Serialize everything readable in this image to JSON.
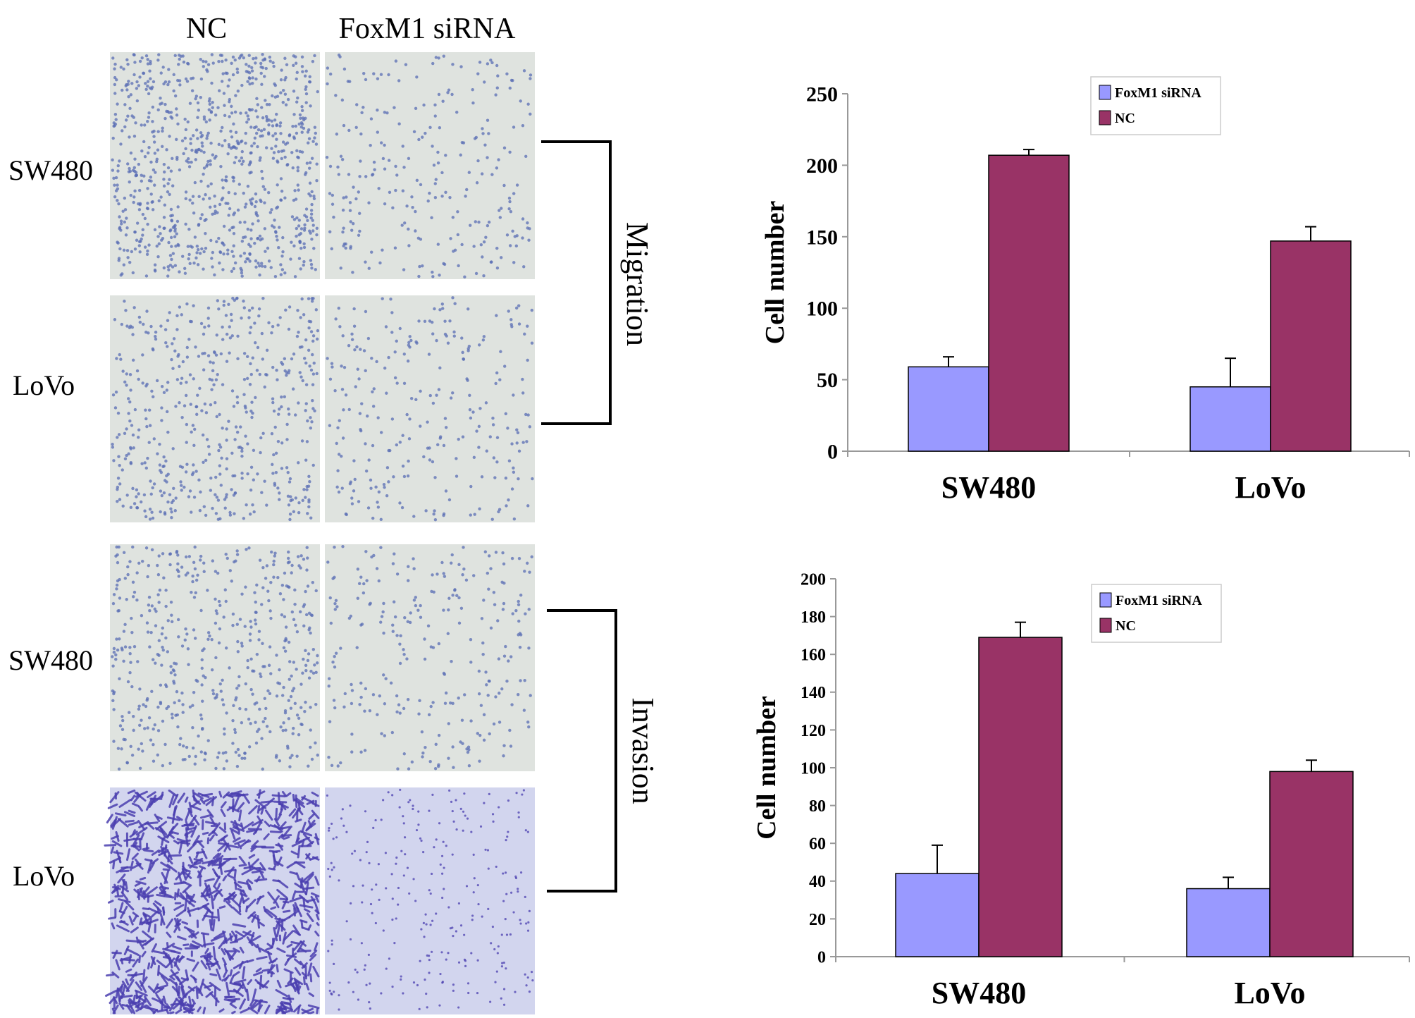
{
  "figure": {
    "column_headers": [
      "NC",
      "FoxM1 siRNA"
    ],
    "row_labels": [
      "SW480",
      "LoVo",
      "SW480",
      "LoVo"
    ],
    "bracket_labels": [
      "Migration",
      "Invasion"
    ],
    "micrographs": [
      {
        "row": "SW480",
        "column": "NC",
        "assay": "Migration",
        "stain": "light-blue",
        "density": "dense"
      },
      {
        "row": "SW480",
        "column": "FoxM1 siRNA",
        "assay": "Migration",
        "stain": "light-blue",
        "density": "sparse"
      },
      {
        "row": "LoVo",
        "column": "NC",
        "assay": "Migration",
        "stain": "light-blue",
        "density": "medium"
      },
      {
        "row": "LoVo",
        "column": "FoxM1 siRNA",
        "assay": "Migration",
        "stain": "light-blue",
        "density": "sparse"
      },
      {
        "row": "SW480",
        "column": "NC",
        "assay": "Invasion",
        "stain": "light-blue",
        "density": "medium"
      },
      {
        "row": "SW480",
        "column": "FoxM1 siRNA",
        "assay": "Invasion",
        "stain": "light-blue",
        "density": "sparse"
      },
      {
        "row": "LoVo",
        "column": "NC",
        "assay": "Invasion",
        "stain": "violet",
        "density": "dense"
      },
      {
        "row": "LoVo",
        "column": "FoxM1 siRNA",
        "assay": "Invasion",
        "stain": "violet",
        "density": "sparse"
      }
    ]
  },
  "colors": {
    "foxm1": "#9999ff",
    "nc": "#993366",
    "micro_bg_light": "#dfe3df",
    "micro_bg_violet": "#d2d5ee",
    "cell_light": "#5a6eb4",
    "cell_violet": "#4b3fb0"
  },
  "chart_data": [
    {
      "type": "bar",
      "title": "",
      "xlabel": "",
      "ylabel": "Cell number",
      "categories": [
        "SW480",
        "LoVo"
      ],
      "ylim": [
        0,
        250
      ],
      "yticks": [
        0,
        50,
        100,
        150,
        200,
        250
      ],
      "legend_position": "top-center",
      "series": [
        {
          "name": "FoxM1 siRNA",
          "color": "#9999ff",
          "values": [
            59,
            45
          ],
          "errors": [
            7,
            20
          ]
        },
        {
          "name": "NC",
          "color": "#993366",
          "values": [
            207,
            147
          ],
          "errors": [
            4,
            10
          ]
        }
      ]
    },
    {
      "type": "bar",
      "title": "",
      "xlabel": "",
      "ylabel": "Cell number",
      "categories": [
        "SW480",
        "LoVo"
      ],
      "ylim": [
        0,
        200
      ],
      "yticks": [
        0,
        20,
        40,
        60,
        80,
        100,
        120,
        140,
        160,
        180,
        200
      ],
      "legend_position": "top-center",
      "series": [
        {
          "name": "FoxM1 siRNA",
          "color": "#9999ff",
          "values": [
            44,
            36
          ],
          "errors": [
            15,
            6
          ]
        },
        {
          "name": "NC",
          "color": "#993366",
          "values": [
            169,
            98
          ],
          "errors": [
            8,
            6
          ]
        }
      ]
    }
  ]
}
